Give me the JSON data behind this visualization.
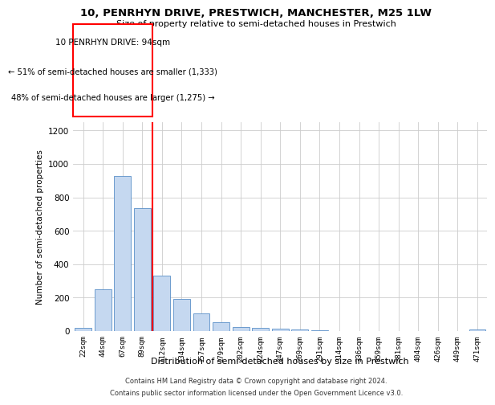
{
  "title1": "10, PENRHYN DRIVE, PRESTWICH, MANCHESTER, M25 1LW",
  "title2": "Size of property relative to semi-detached houses in Prestwich",
  "xlabel": "Distribution of semi-detached houses by size in Prestwich",
  "ylabel": "Number of semi-detached properties",
  "bar_categories": [
    "22sqm",
    "44sqm",
    "67sqm",
    "89sqm",
    "112sqm",
    "134sqm",
    "157sqm",
    "179sqm",
    "202sqm",
    "224sqm",
    "247sqm",
    "269sqm",
    "291sqm",
    "314sqm",
    "336sqm",
    "359sqm",
    "381sqm",
    "404sqm",
    "426sqm",
    "449sqm",
    "471sqm"
  ],
  "bar_values": [
    18,
    248,
    930,
    735,
    330,
    193,
    107,
    55,
    25,
    20,
    13,
    10,
    5,
    0,
    0,
    0,
    0,
    0,
    0,
    0,
    10
  ],
  "bar_color": "#c5d8f0",
  "bar_edge_color": "#5a90c8",
  "vline_index": 3,
  "annotation_title": "10 PENRHYN DRIVE: 94sqm",
  "annotation_line1": "← 51% of semi-detached houses are smaller (1,333)",
  "annotation_line2": "48% of semi-detached houses are larger (1,275) →",
  "ylim": [
    0,
    1250
  ],
  "yticks": [
    0,
    200,
    400,
    600,
    800,
    1000,
    1200
  ],
  "footer1": "Contains HM Land Registry data © Crown copyright and database right 2024.",
  "footer2": "Contains public sector information licensed under the Open Government Licence v3.0.",
  "grid_color": "#cccccc"
}
